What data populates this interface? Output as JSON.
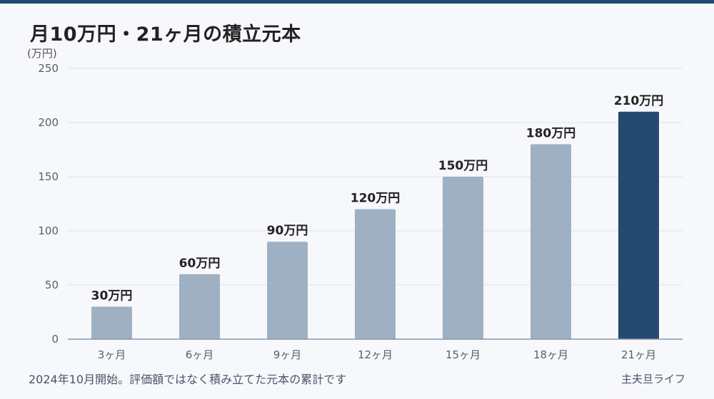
{
  "title": "月10万円・21ヶ月の積立元本",
  "footnote": "2024年10月開始。評価額ではなく積み立てた元本の累計です",
  "brand": "主夫旦ライフ",
  "colors": {
    "bar": "#9fb0c3",
    "bar_highlight": "#244a6f",
    "grid": "#dde3ea",
    "axis": "#8a96a5",
    "tick_text": "#555f6d",
    "label_text": "#222222"
  },
  "chart_data": {
    "type": "bar",
    "title": "月10万円・21ヶ月の積立元本",
    "ylabel": "(万円)",
    "xlabel": "",
    "ylim": [
      0,
      250
    ],
    "yticks": [
      0,
      50,
      100,
      150,
      200,
      250
    ],
    "grid": true,
    "categories": [
      "3ヶ月",
      "6ヶ月",
      "9ヶ月",
      "12ヶ月",
      "15ヶ月",
      "18ヶ月",
      "21ヶ月"
    ],
    "values": [
      30,
      60,
      90,
      120,
      150,
      180,
      210
    ],
    "data_labels": [
      "30万円",
      "60万円",
      "90万円",
      "120万円",
      "150万円",
      "180万円",
      "210万円"
    ],
    "highlight_index": 6
  }
}
